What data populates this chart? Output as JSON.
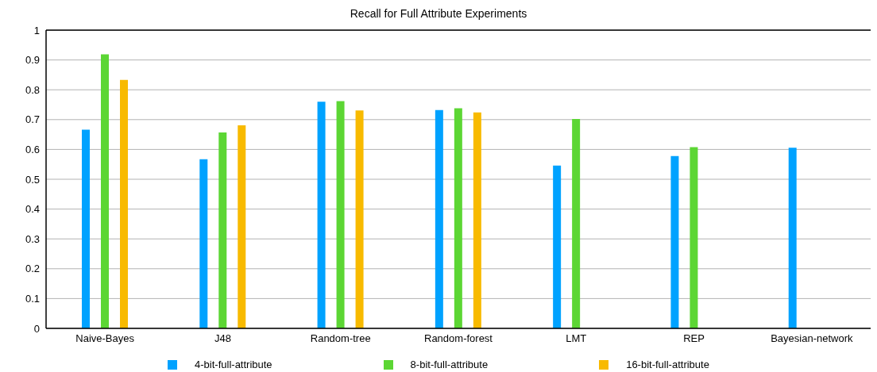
{
  "chart_data": {
    "type": "bar",
    "title": "Recall for Full Attribute  Experiments",
    "categories": [
      "Naive-Bayes",
      "J48",
      "Random-tree",
      "Random-forest",
      "LMT",
      "REP",
      "Bayesian-network"
    ],
    "series": [
      {
        "name": "4-bit-full-attribute",
        "color": "#00a2ff",
        "values": [
          0.666,
          0.567,
          0.76,
          0.732,
          0.546,
          0.578,
          0.606
        ]
      },
      {
        "name": "8-bit-full-attribute",
        "color": "#5cd634",
        "values": [
          0.919,
          0.657,
          0.762,
          0.738,
          0.702,
          0.608,
          null
        ]
      },
      {
        "name": "16-bit-full-attribute",
        "color": "#f8ba00",
        "values": [
          0.833,
          0.681,
          0.731,
          0.724,
          null,
          null,
          null
        ]
      }
    ],
    "ylim": [
      0,
      1
    ],
    "yticks": [
      0,
      0.1,
      0.2,
      0.3,
      0.4,
      0.5,
      0.6,
      0.7,
      0.8,
      0.9,
      1
    ],
    "grid": "y",
    "legend": "bottom"
  }
}
